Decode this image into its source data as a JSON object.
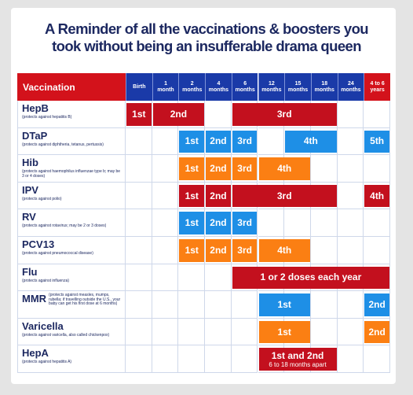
{
  "title": [
    "A Reminder of all the vaccinations & boosters you",
    "took without being an insufferable drama queen"
  ],
  "table": {
    "header": "Vaccination",
    "columns": [
      {
        "top": "Birth"
      },
      {
        "top": "1",
        "bottom": "month"
      },
      {
        "top": "2",
        "bottom": "months"
      },
      {
        "top": "4",
        "bottom": "months"
      },
      {
        "top": "6",
        "bottom": "months"
      },
      {
        "top": "12",
        "bottom": "months"
      },
      {
        "top": "15",
        "bottom": "months"
      },
      {
        "top": "18",
        "bottom": "months"
      },
      {
        "top": "24",
        "bottom": "months"
      },
      {
        "top": "4 to 6",
        "bottom": "years",
        "color": "#d3121b"
      }
    ],
    "rows": [
      {
        "name": "HepB",
        "note": "(protects against hepatitis B)",
        "doses": [
          {
            "label": "1st",
            "cols": [
              0,
              0
            ],
            "color": "#c3101e"
          },
          {
            "label": "2nd",
            "cols": [
              1,
              2
            ],
            "color": "#c3101e"
          },
          {
            "label": "3rd",
            "cols": [
              4,
              7
            ],
            "color": "#c3101e"
          }
        ]
      },
      {
        "name": "DTaP",
        "note": "(protects against diphtheria, tetanus, pertussis)",
        "doses": [
          {
            "label": "1st",
            "cols": [
              2,
              2
            ],
            "color": "#1e8fe6"
          },
          {
            "label": "2nd",
            "cols": [
              3,
              3
            ],
            "color": "#1e8fe6"
          },
          {
            "label": "3rd",
            "cols": [
              4,
              4
            ],
            "color": "#1e8fe6"
          },
          {
            "label": "4th",
            "cols": [
              6,
              7
            ],
            "color": "#1e8fe6"
          },
          {
            "label": "5th",
            "cols": [
              9,
              9
            ],
            "color": "#1e8fe6"
          }
        ]
      },
      {
        "name": "Hib",
        "note": "(protects against haemophilus influenzae type b; may be 3 or 4 doses)",
        "doses": [
          {
            "label": "1st",
            "cols": [
              2,
              2
            ],
            "color": "#fb7f13"
          },
          {
            "label": "2nd",
            "cols": [
              3,
              3
            ],
            "color": "#fb7f13"
          },
          {
            "label": "3rd",
            "cols": [
              4,
              4
            ],
            "color": "#fb7f13"
          },
          {
            "label": "4th",
            "cols": [
              5,
              6
            ],
            "color": "#fb7f13"
          }
        ]
      },
      {
        "name": "IPV",
        "note": "(protects against polio)",
        "doses": [
          {
            "label": "1st",
            "cols": [
              2,
              2
            ],
            "color": "#c3101e"
          },
          {
            "label": "2nd",
            "cols": [
              3,
              3
            ],
            "color": "#c3101e"
          },
          {
            "label": "3rd",
            "cols": [
              4,
              7
            ],
            "color": "#c3101e"
          },
          {
            "label": "4th",
            "cols": [
              9,
              9
            ],
            "color": "#c3101e"
          }
        ]
      },
      {
        "name": "RV",
        "note": "(protects against rotavirus; may be 2 or 3 doses)",
        "doses": [
          {
            "label": "1st",
            "cols": [
              2,
              2
            ],
            "color": "#1e8fe6"
          },
          {
            "label": "2nd",
            "cols": [
              3,
              3
            ],
            "color": "#1e8fe6"
          },
          {
            "label": "3rd",
            "cols": [
              4,
              4
            ],
            "color": "#1e8fe6"
          }
        ]
      },
      {
        "name": "PCV13",
        "note": "(protects against pneumococcal disease)",
        "doses": [
          {
            "label": "1st",
            "cols": [
              2,
              2
            ],
            "color": "#fb7f13"
          },
          {
            "label": "2nd",
            "cols": [
              3,
              3
            ],
            "color": "#fb7f13"
          },
          {
            "label": "3rd",
            "cols": [
              4,
              4
            ],
            "color": "#fb7f13"
          },
          {
            "label": "4th",
            "cols": [
              5,
              6
            ],
            "color": "#fb7f13"
          }
        ]
      },
      {
        "name": "Flu",
        "note": "(protects against influenza)",
        "doses": [
          {
            "label": "1 or 2 doses each year",
            "cols": [
              4,
              9
            ],
            "color": "#c3101e"
          }
        ]
      },
      {
        "name": "MMR",
        "inline_note": "(protects against measles, mumps, rubella; if travelling outside the U.S., your baby can get his first dose at 6 months)",
        "doses": [
          {
            "label": "1st",
            "cols": [
              5,
              6
            ],
            "color": "#1e8fe6"
          },
          {
            "label": "2nd",
            "cols": [
              9,
              9
            ],
            "color": "#1e8fe6"
          }
        ]
      },
      {
        "name": "Varicella",
        "note": "(protects against varicella, also called chickenpox)",
        "doses": [
          {
            "label": "1st",
            "cols": [
              5,
              6
            ],
            "color": "#fb7f13"
          },
          {
            "label": "2nd",
            "cols": [
              9,
              9
            ],
            "color": "#fb7f13"
          }
        ]
      },
      {
        "name": "HepA",
        "note": "(protects against hepatitis A)",
        "doses": [
          {
            "label": "1st and 2nd",
            "sub": "6 to 18 months apart",
            "cols": [
              5,
              7
            ],
            "color": "#c3101e"
          }
        ]
      }
    ]
  }
}
